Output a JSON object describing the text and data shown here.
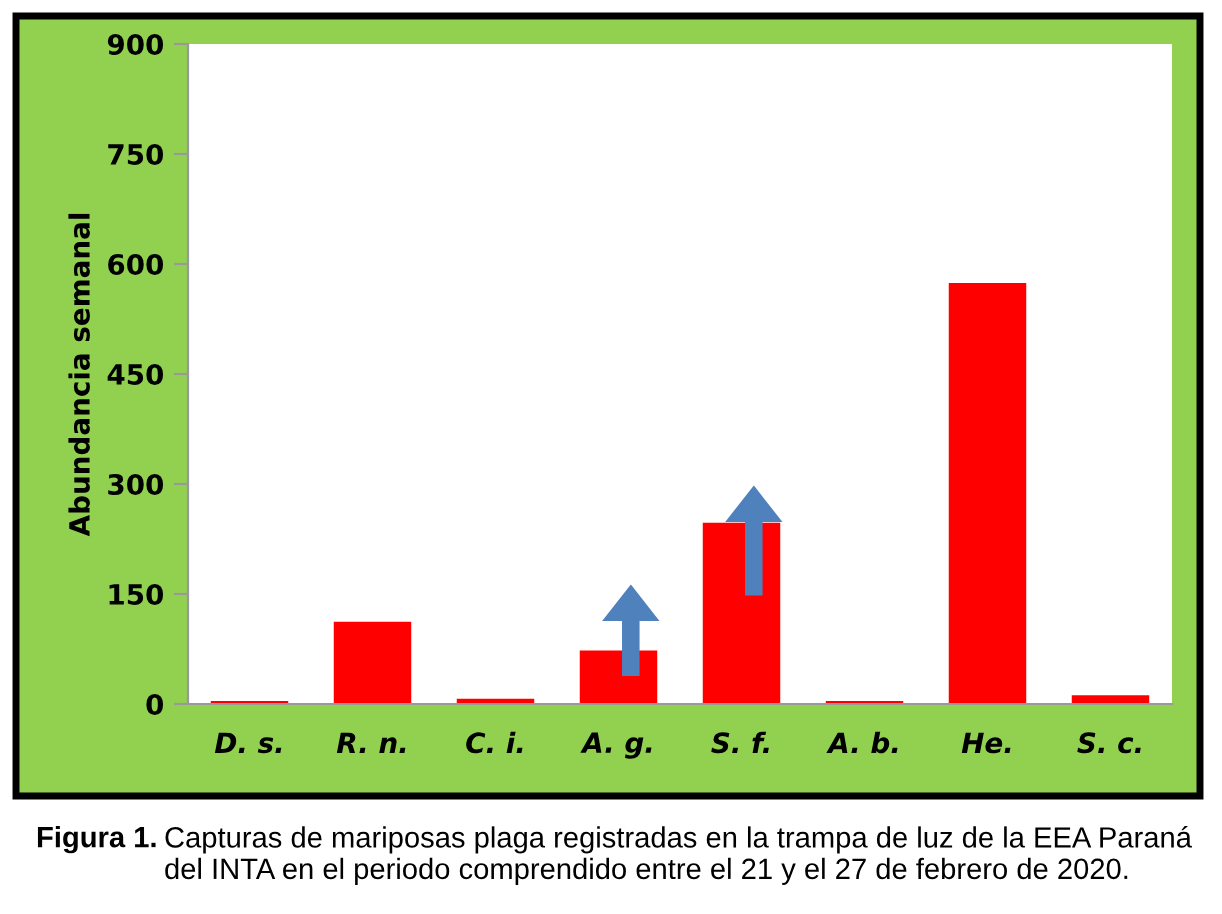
{
  "chart_data": {
    "type": "bar",
    "ylabel": "Abundancia semanal",
    "categories": [
      "D. s.",
      "R. n.",
      "C. i.",
      "A. g.",
      "S. f.",
      "A. b.",
      "He.",
      "S. c."
    ],
    "values": [
      4,
      112,
      7,
      73,
      247,
      4,
      574,
      12
    ],
    "color": "#ff0000",
    "ylim": [
      0,
      900
    ],
    "yticks": [
      0,
      150,
      300,
      450,
      600,
      750,
      900
    ],
    "grid": false,
    "annotations": [
      "Figura 1.",
      "Capturas de mariposas plaga registradas en la trampa de luz de la EEA Paraná del INTA en el periodo comprendido entre el 21 y el 27 de febrero de 2020."
    ]
  }
}
